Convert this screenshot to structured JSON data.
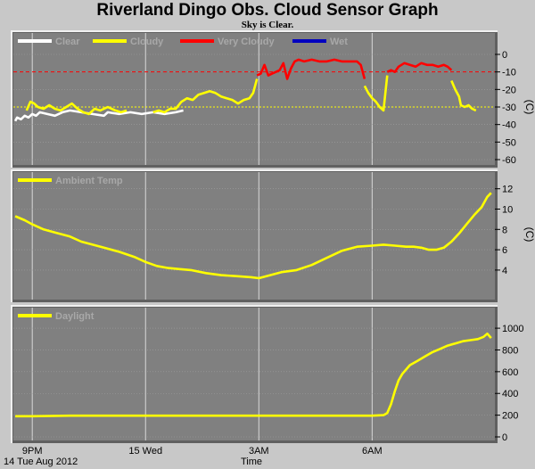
{
  "title": "Riverland Dingo Obs. Cloud Sensor Graph",
  "subtitle": "Sky is Clear.",
  "date_label": "14 Tue Aug 2012",
  "x_axis_label": "Time",
  "colors": {
    "clear": "#ffffff",
    "cloudy": "#ffff00",
    "very_cloudy": "#ff0000",
    "wet": "#0000c0",
    "ambient": "#ffff00",
    "daylight": "#ffff00",
    "panel": "#808080",
    "threshold_red": "#ff0000",
    "threshold_yellow": "#ffff00"
  },
  "chart_data": [
    {
      "type": "line",
      "ylabel": "(C)",
      "ylim": [
        -60,
        0
      ],
      "yticks": [
        "0",
        "-10",
        "-20",
        "-30",
        "-40",
        "-50",
        "-60"
      ],
      "xlim": [
        20.5,
        33.25
      ],
      "xticks": [
        {
          "x": 21,
          "label": "9PM"
        },
        {
          "x": 24,
          "label": "15 Wed"
        },
        {
          "x": 27,
          "label": "3AM"
        },
        {
          "x": 30,
          "label": "6AM"
        }
      ],
      "legend": [
        "Clear",
        "Cloudy",
        "Very Cloudy",
        "Wet"
      ],
      "thresholds": [
        -10,
        -30
      ],
      "series": [
        {
          "name": "Clear",
          "color": "#ffffff",
          "x": [
            20.55,
            20.6,
            20.7,
            20.8,
            20.9,
            21.0,
            21.1,
            21.2,
            21.4,
            21.6,
            21.8,
            22.0,
            22.3,
            22.6,
            22.9,
            23.0,
            23.3,
            23.6,
            23.9,
            24.2,
            24.5,
            24.8,
            25.0
          ],
          "y": [
            -38,
            -36,
            -37,
            -35,
            -36,
            -34,
            -35,
            -33,
            -34,
            -35,
            -33,
            -32,
            -33,
            -34,
            -35,
            -33,
            -34,
            -33,
            -34,
            -33,
            -34,
            -33,
            -32
          ]
        },
        {
          "name": "Cloudy",
          "color": "#ffff00",
          "x": [
            20.85,
            20.95,
            21.05,
            21.15,
            21.3,
            21.45,
            21.6,
            21.75,
            21.9,
            22.05,
            22.2,
            22.35,
            22.5,
            22.65,
            22.8,
            23.0,
            23.1,
            23.2,
            23.35,
            23.5
          ],
          "y": [
            -32,
            -27,
            -28,
            -30,
            -31,
            -29,
            -31,
            -32,
            -30,
            -28,
            -31,
            -33,
            -34,
            -31,
            -32,
            -30,
            -31,
            -32,
            -33,
            -32
          ]
        },
        {
          "name": "Cloudy",
          "color": "#ffff00",
          "x": [
            24.2,
            24.35,
            24.5,
            24.65,
            24.8,
            24.95,
            25.1,
            25.25,
            25.4,
            25.55,
            25.7,
            25.85,
            26.0,
            26.15,
            26.3,
            26.45,
            26.6,
            26.75,
            26.85,
            26.95
          ],
          "y": [
            -33,
            -32,
            -33,
            -31,
            -31,
            -27,
            -25,
            -26,
            -23,
            -22,
            -21,
            -22,
            -24,
            -25,
            -26,
            -28,
            -26,
            -25,
            -22,
            -14
          ]
        },
        {
          "name": "Very Cloudy",
          "color": "#ff0000",
          "x": [
            26.95,
            27.05,
            27.15,
            27.25,
            27.35,
            27.45,
            27.55,
            27.65,
            27.75,
            27.85,
            27.95,
            28.05,
            28.2,
            28.4,
            28.6,
            28.8,
            29.0,
            29.2,
            29.4,
            29.6,
            29.7,
            29.8
          ],
          "y": [
            -12,
            -11,
            -6,
            -12,
            -11,
            -10,
            -9,
            -5,
            -14,
            -8,
            -4,
            -3,
            -4,
            -3,
            -4,
            -4,
            -3,
            -4,
            -4,
            -4,
            -6,
            -14
          ]
        },
        {
          "name": "Cloudy",
          "color": "#ffff00",
          "x": [
            29.8,
            29.9,
            30.0,
            30.1,
            30.2,
            30.3,
            30.4
          ],
          "y": [
            -18,
            -22,
            -25,
            -27,
            -30,
            -32,
            -12
          ]
        },
        {
          "name": "Very Cloudy",
          "color": "#ff0000",
          "x": [
            30.4,
            30.5,
            30.6,
            30.7,
            30.85,
            31.0,
            31.15,
            31.3,
            31.45,
            31.6,
            31.75,
            31.9,
            32.0,
            32.1
          ],
          "y": [
            -10,
            -9,
            -10,
            -7,
            -5,
            -6,
            -7,
            -5,
            -6,
            -6,
            -7,
            -6,
            -7,
            -9
          ]
        },
        {
          "name": "Cloudy",
          "color": "#ffff00",
          "x": [
            32.1,
            32.2,
            32.3,
            32.35,
            32.45,
            32.55,
            32.65,
            32.75
          ],
          "y": [
            -15,
            -20,
            -24,
            -29,
            -30,
            -29,
            -31,
            -32
          ]
        }
      ]
    },
    {
      "type": "line",
      "ylabel": "(C)",
      "ylim": [
        2.5,
        12.5
      ],
      "yticks": [
        "12",
        "10",
        "8",
        "6",
        "4"
      ],
      "ytick_values": [
        12,
        10,
        8,
        6,
        4
      ],
      "xlim": [
        20.5,
        33.25
      ],
      "xticks": [
        {
          "x": 21,
          "label": ""
        },
        {
          "x": 24,
          "label": ""
        },
        {
          "x": 27,
          "label": ""
        },
        {
          "x": 30,
          "label": ""
        }
      ],
      "legend": [
        "Ambient Temp"
      ],
      "series": [
        {
          "name": "Ambient Temp",
          "color": "#ffff00",
          "x": [
            20.55,
            20.8,
            21.0,
            21.3,
            21.6,
            22.0,
            22.3,
            22.6,
            22.9,
            23.3,
            23.7,
            24.0,
            24.3,
            24.6,
            24.9,
            25.2,
            25.6,
            26.0,
            26.4,
            26.8,
            27.0,
            27.3,
            27.6,
            28.0,
            28.4,
            28.8,
            29.2,
            29.6,
            30.0,
            30.3,
            30.6,
            30.9,
            31.1,
            31.3,
            31.5,
            31.7,
            31.9,
            32.1,
            32.3,
            32.5,
            32.7,
            32.9,
            33.05,
            33.15
          ],
          "y": [
            9.3,
            8.9,
            8.5,
            8.0,
            7.7,
            7.3,
            6.8,
            6.5,
            6.2,
            5.8,
            5.3,
            4.8,
            4.4,
            4.2,
            4.1,
            4.0,
            3.7,
            3.5,
            3.4,
            3.3,
            3.2,
            3.5,
            3.8,
            4.0,
            4.5,
            5.2,
            5.9,
            6.3,
            6.4,
            6.5,
            6.4,
            6.3,
            6.3,
            6.2,
            6.0,
            6.0,
            6.2,
            6.8,
            7.6,
            8.5,
            9.4,
            10.2,
            11.2,
            11.6
          ]
        }
      ]
    },
    {
      "type": "line",
      "ylim": [
        0,
        1050
      ],
      "yticks": [
        "1000",
        "800",
        "600",
        "400",
        "200",
        "0"
      ],
      "ytick_values": [
        1000,
        800,
        600,
        400,
        200,
        0
      ],
      "xlim": [
        20.5,
        33.25
      ],
      "xticks": [
        {
          "x": 21,
          "label": "9PM"
        },
        {
          "x": 24,
          "label": "15 Wed"
        },
        {
          "x": 27,
          "label": "3AM"
        },
        {
          "x": 30,
          "label": "6AM"
        }
      ],
      "legend": [
        "Daylight"
      ],
      "series": [
        {
          "name": "Daylight",
          "color": "#ffff00",
          "x": [
            20.55,
            21.0,
            22.0,
            23.0,
            24.0,
            25.0,
            26.0,
            27.0,
            28.0,
            29.0,
            30.0,
            30.3,
            30.4,
            30.5,
            30.6,
            30.7,
            30.8,
            30.9,
            31.0,
            31.2,
            31.4,
            31.6,
            31.8,
            32.0,
            32.2,
            32.4,
            32.6,
            32.8,
            32.95,
            33.05,
            33.15
          ],
          "y": [
            190,
            190,
            195,
            195,
            195,
            195,
            195,
            195,
            195,
            195,
            195,
            200,
            220,
            300,
            420,
            520,
            580,
            620,
            660,
            700,
            740,
            780,
            810,
            840,
            860,
            880,
            890,
            900,
            920,
            950,
            910
          ]
        }
      ]
    }
  ]
}
